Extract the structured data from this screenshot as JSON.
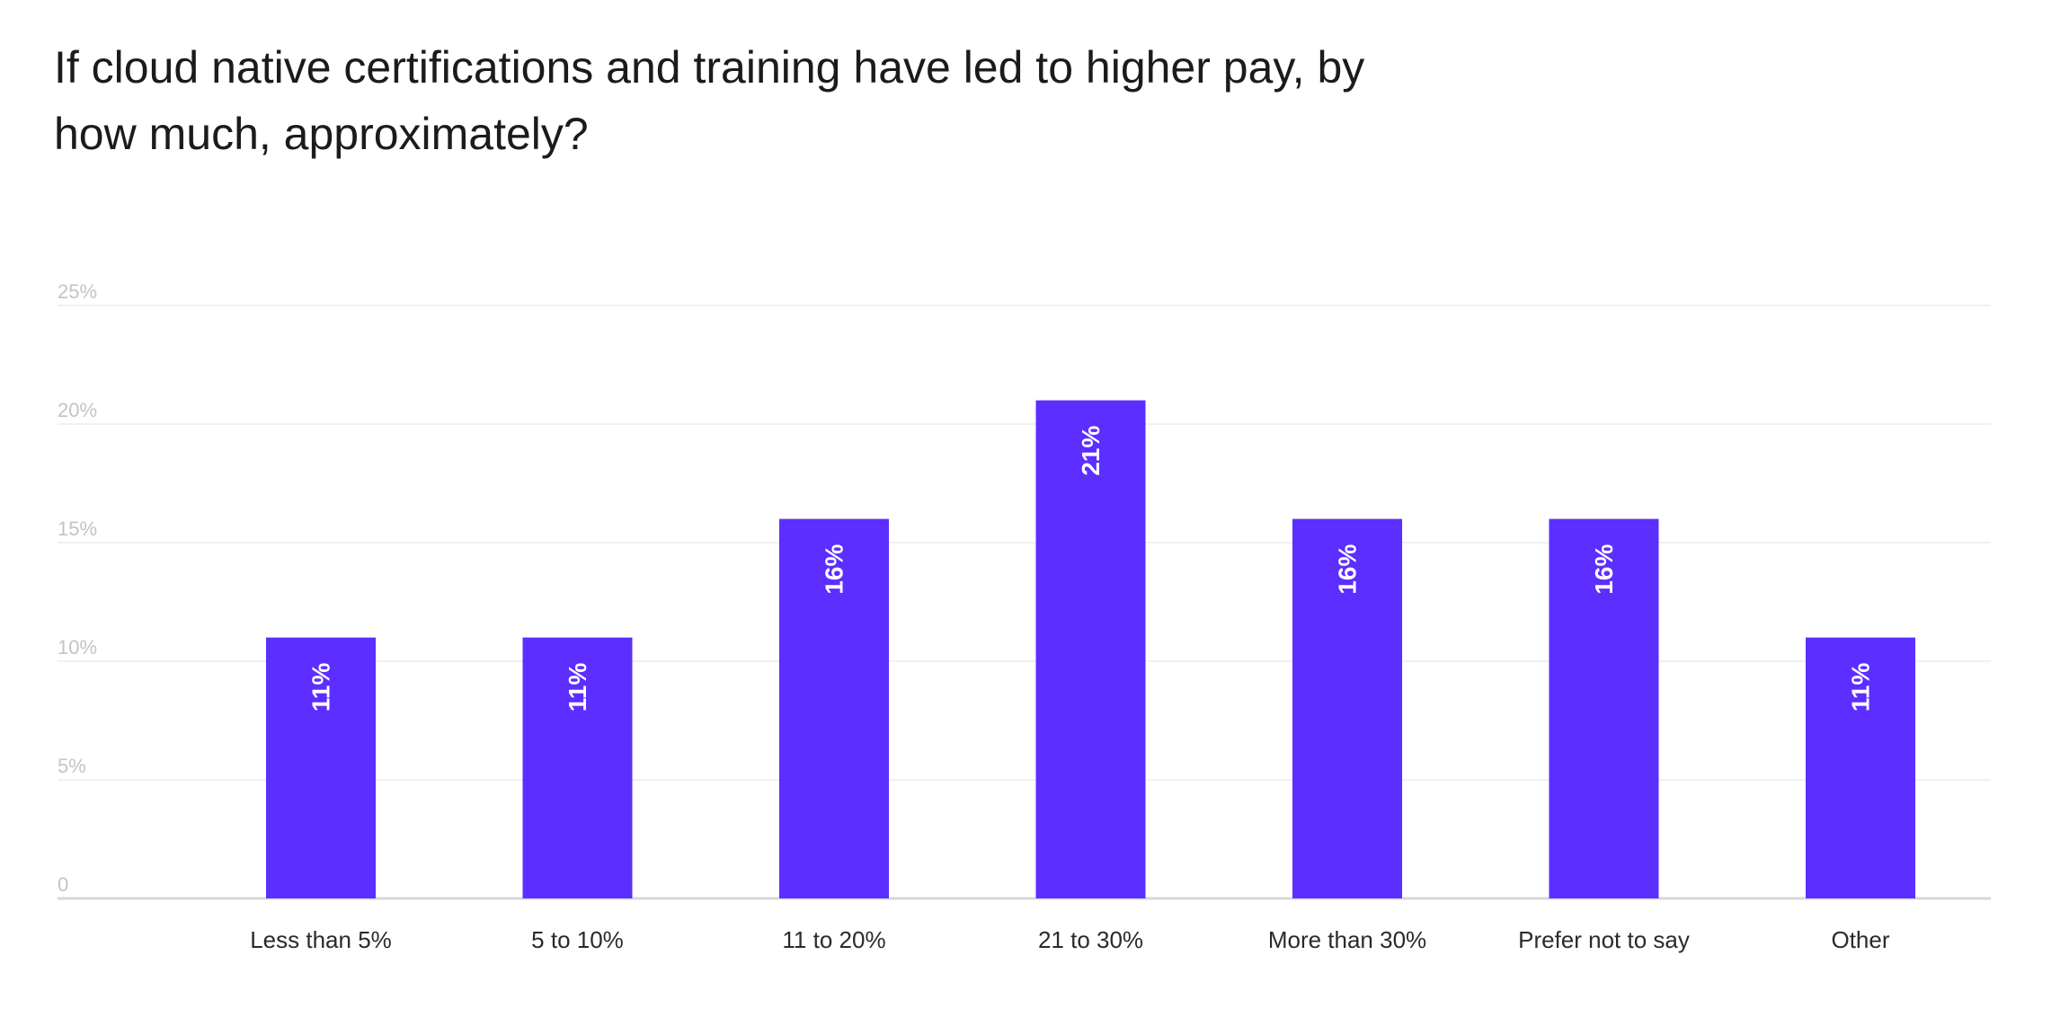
{
  "chart_data": {
    "type": "bar",
    "title": "If cloud native certifications and training have led to higher pay, by how much, approximately?",
    "categories": [
      "Less than 5%",
      "5 to 10%",
      "11 to 20%",
      "21 to 30%",
      "More than 30%",
      "Prefer not to say",
      "Other"
    ],
    "values": [
      11,
      11,
      16,
      21,
      16,
      16,
      11
    ],
    "data_labels": [
      "11%",
      "11%",
      "16%",
      "21%",
      "16%",
      "16%",
      "11%"
    ],
    "yticks": [
      0,
      5,
      10,
      15,
      20,
      25
    ],
    "ytick_labels": [
      "0",
      "5%",
      "10%",
      "15%",
      "20%",
      "25%"
    ],
    "ylim": [
      0,
      25
    ],
    "xlabel": "",
    "ylabel": "",
    "grid": true,
    "bar_color": "#5c2eff"
  }
}
